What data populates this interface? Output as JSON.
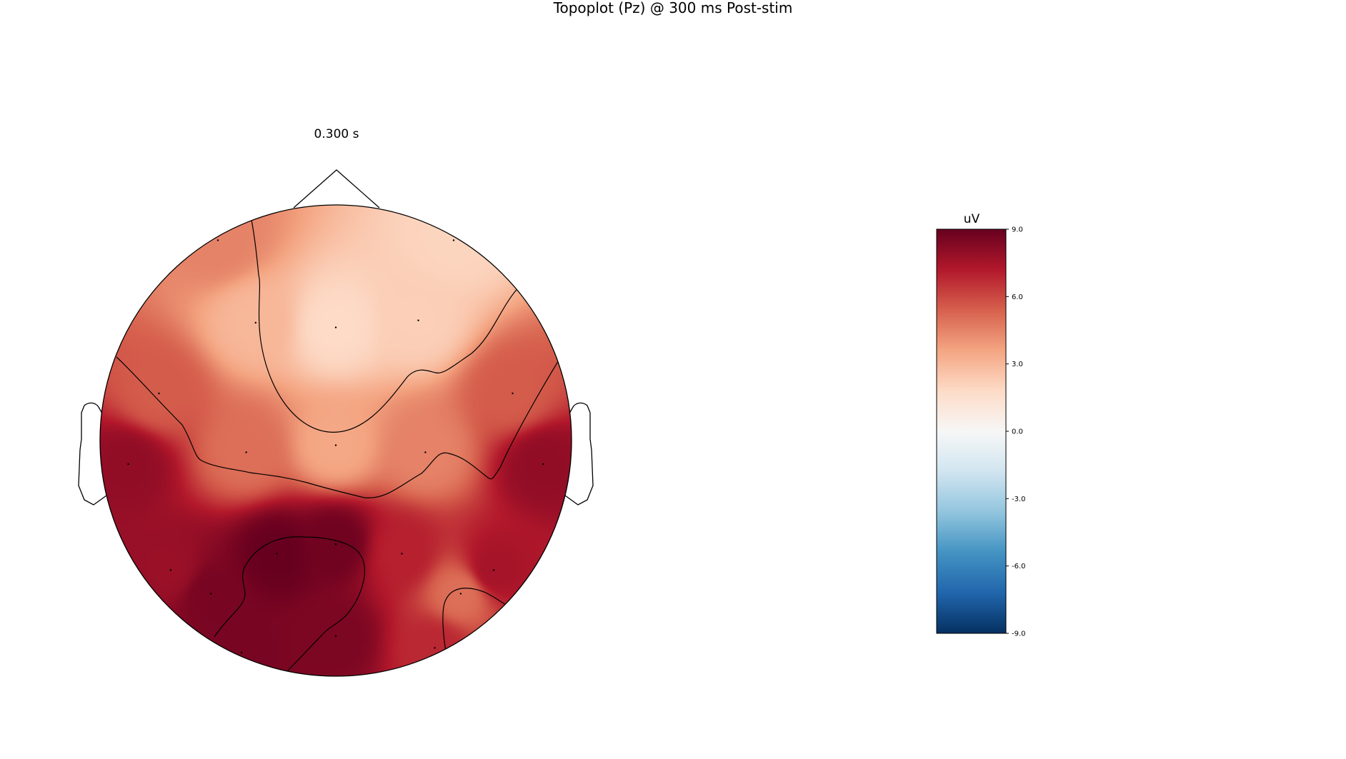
{
  "chart_data": {
    "type": "heatmap",
    "title": "Topoplot (Pz) @ 300 ms Post-stim",
    "subtitle": "0.300 s",
    "colorbar": {
      "label": "uV",
      "vmin": -9.0,
      "vmax": 9.0,
      "ticks": [
        9.0,
        6.0,
        3.0,
        0.0,
        -3.0,
        -6.0,
        -9.0
      ],
      "tick_labels": [
        "9.0",
        "6.0",
        "3.0",
        "0.0",
        "-3.0",
        "-6.0",
        "-9.0"
      ],
      "colormap": "RdBu_r",
      "colors": [
        "#67001f",
        "#b2182b",
        "#d6604d",
        "#f4a582",
        "#fddbc7",
        "#f7f7f7",
        "#d1e5f0",
        "#92c5de",
        "#4393c3",
        "#2166ac",
        "#053061"
      ]
    },
    "sensor_values": [
      {
        "x": -0.5,
        "y": 0.85,
        "value": 4.5
      },
      {
        "x": 0.5,
        "y": 0.85,
        "value": 2.0
      },
      {
        "x": -0.34,
        "y": 0.5,
        "value": 3.0
      },
      {
        "x": 0.0,
        "y": 0.48,
        "value": 1.8
      },
      {
        "x": 0.35,
        "y": 0.51,
        "value": 2.2
      },
      {
        "x": -0.75,
        "y": 0.2,
        "value": 5.5
      },
      {
        "x": 0.75,
        "y": 0.2,
        "value": 5.5
      },
      {
        "x": -0.38,
        "y": -0.05,
        "value": 5.0
      },
      {
        "x": 0.0,
        "y": -0.02,
        "value": 3.5
      },
      {
        "x": 0.38,
        "y": -0.05,
        "value": 4.5
      },
      {
        "x": -0.88,
        "y": -0.1,
        "value": 8.0
      },
      {
        "x": 0.88,
        "y": -0.1,
        "value": 8.0
      },
      {
        "x": -0.7,
        "y": -0.55,
        "value": 7.8
      },
      {
        "x": -0.25,
        "y": -0.48,
        "value": 9.0
      },
      {
        "x": 0.0,
        "y": -0.44,
        "value": 8.8
      },
      {
        "x": 0.28,
        "y": -0.48,
        "value": 7.0
      },
      {
        "x": 0.67,
        "y": -0.55,
        "value": 7.5
      },
      {
        "x": -0.53,
        "y": -0.65,
        "value": 8.6
      },
      {
        "x": 0.53,
        "y": -0.65,
        "value": 5.0
      },
      {
        "x": 0.0,
        "y": -0.83,
        "value": 8.5
      },
      {
        "x": -0.4,
        "y": -0.9,
        "value": 8.6
      },
      {
        "x": 0.42,
        "y": -0.88,
        "value": 6.8
      }
    ],
    "contour_levels": [
      3.0,
      6.0,
      9.0
    ],
    "grid": false
  }
}
